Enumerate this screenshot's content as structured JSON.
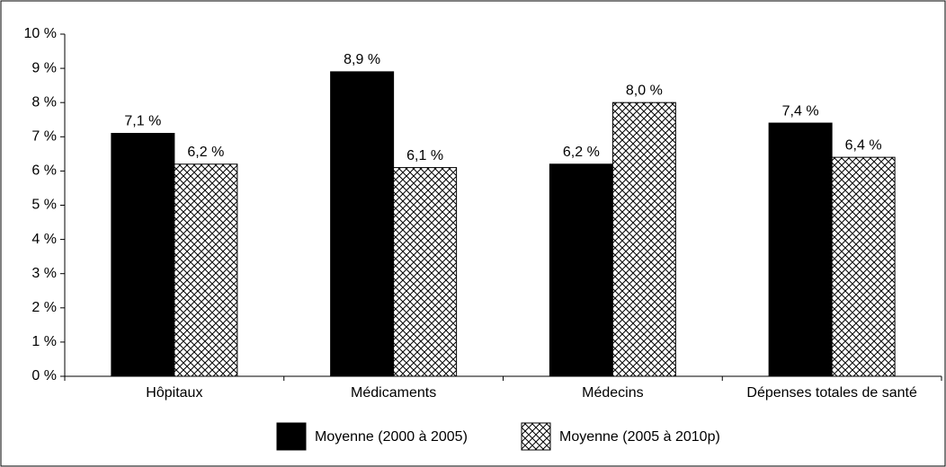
{
  "chart_data": {
    "type": "bar",
    "categories": [
      "Hôpitaux",
      "Médicaments",
      "Médecins",
      "Dépenses totales de santé"
    ],
    "series": [
      {
        "name": "Moyenne (2000 à 2005)",
        "color": "#000000",
        "values": [
          7.1,
          8.9,
          6.2,
          7.4
        ],
        "value_labels": [
          "7,1 %",
          "8,9 %",
          "6,2 %",
          "7,4 %"
        ]
      },
      {
        "name": "Moyenne (2005 à 2010p)",
        "color": "#000000",
        "hatch": true,
        "values": [
          6.2,
          6.1,
          8.0,
          6.4
        ],
        "value_labels": [
          "6,2 %",
          "6,1 %",
          "8,0 %",
          "6,4 %"
        ]
      }
    ],
    "ylim": [
      0,
      10
    ],
    "yticks": [
      {
        "value": 0,
        "label": "0 %"
      },
      {
        "value": 1,
        "label": "1 %"
      },
      {
        "value": 2,
        "label": "2 %"
      },
      {
        "value": 3,
        "label": "3 %"
      },
      {
        "value": 4,
        "label": "4 %"
      },
      {
        "value": 5,
        "label": "5 %"
      },
      {
        "value": 6,
        "label": "6 %"
      },
      {
        "value": 7,
        "label": "7 %"
      },
      {
        "value": 8,
        "label": "8 %"
      },
      {
        "value": 9,
        "label": "9 %"
      },
      {
        "value": 10,
        "label": "10 %"
      }
    ],
    "legend": "bottom"
  }
}
